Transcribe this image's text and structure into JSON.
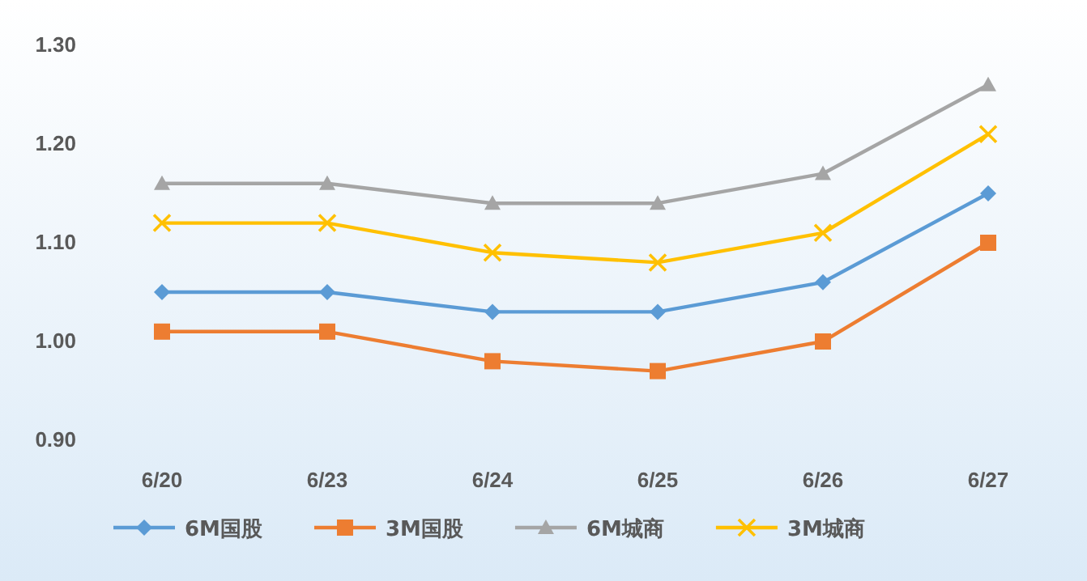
{
  "chart_data": {
    "type": "line",
    "categories": [
      "6/20",
      "6/23",
      "6/24",
      "6/25",
      "6/26",
      "6/27"
    ],
    "ylim": [
      0.9,
      1.3
    ],
    "yticks": [
      {
        "value": 0.9,
        "label": "0.90"
      },
      {
        "value": 1.0,
        "label": "1.00"
      },
      {
        "value": 1.1,
        "label": "1.10"
      },
      {
        "value": 1.2,
        "label": "1.20"
      },
      {
        "value": 1.3,
        "label": "1.30"
      }
    ],
    "legend": "bottom",
    "series": [
      {
        "name": "6M国股",
        "color": "#5b9bd5",
        "marker": "diamond",
        "values": [
          1.05,
          1.05,
          1.03,
          1.03,
          1.06,
          1.15
        ]
      },
      {
        "name": "3M国股",
        "color": "#ed7d31",
        "marker": "square",
        "values": [
          1.01,
          1.01,
          0.98,
          0.97,
          1.0,
          1.1
        ]
      },
      {
        "name": "6M城商",
        "color": "#a5a5a5",
        "marker": "triangle",
        "values": [
          1.16,
          1.16,
          1.14,
          1.14,
          1.17,
          1.26
        ]
      },
      {
        "name": "3M城商",
        "color": "#ffc000",
        "marker": "cross",
        "values": [
          1.12,
          1.12,
          1.09,
          1.08,
          1.11,
          1.21
        ]
      }
    ]
  }
}
